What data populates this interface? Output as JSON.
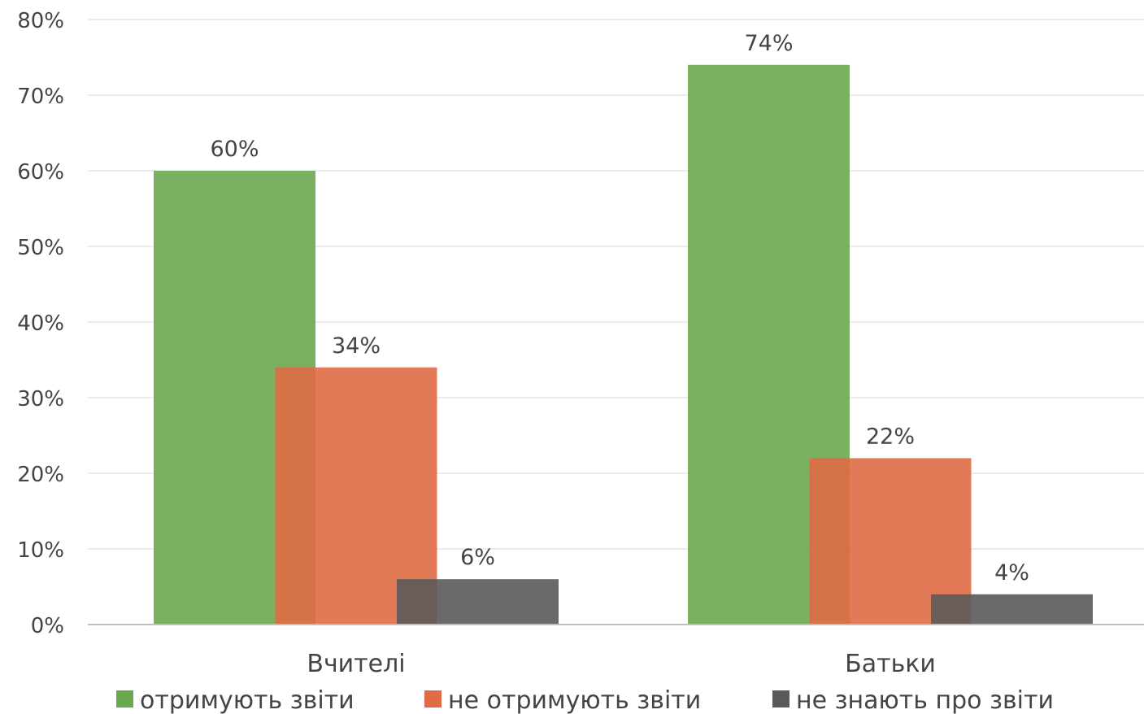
{
  "chart_data": {
    "type": "bar",
    "categories": [
      "Вчителі",
      "Батьки"
    ],
    "series": [
      {
        "name": "отримують звіти",
        "values": [
          60,
          74
        ],
        "labels": [
          "60%",
          "74%"
        ],
        "color": "#6aa84f"
      },
      {
        "name": "не отримують звіти",
        "values": [
          34,
          22
        ],
        "labels": [
          "34%",
          "22%"
        ],
        "color": "#e06b45"
      },
      {
        "name": "не знають про звіти",
        "values": [
          6,
          4
        ],
        "labels": [
          "6%",
          "4%"
        ],
        "color": "#5a5a5a"
      }
    ],
    "ylim": [
      0,
      80
    ],
    "yticks": [
      "0%",
      "10%",
      "20%",
      "30%",
      "40%",
      "50%",
      "60%",
      "70%",
      "80%"
    ],
    "grid": true,
    "legend_position": "bottom"
  }
}
